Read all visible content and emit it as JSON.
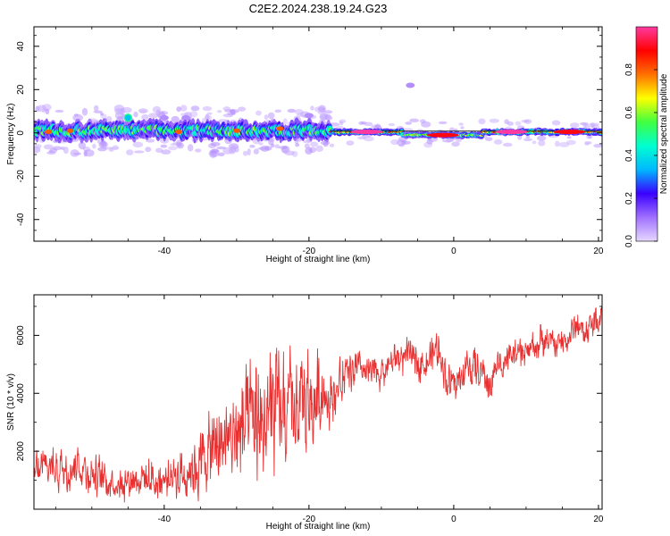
{
  "title": "C2E2.2024.238.19.24.G23",
  "colorbar": {
    "label": "Normalized spectral amplitude",
    "ticks": [
      "0.0",
      "0.2",
      "0.4",
      "0.6",
      "0.8"
    ],
    "tick_values": [
      0.0,
      0.2,
      0.4,
      0.6,
      0.8
    ],
    "range": [
      0,
      1
    ],
    "colors": [
      "#e6d8ff",
      "#a070ff",
      "#3a00ff",
      "#00b8ff",
      "#00ffd0",
      "#40ff40",
      "#ffff00",
      "#ff7000",
      "#ff0000",
      "#ff3aa0"
    ]
  },
  "chart_data": [
    {
      "type": "heatmap",
      "xlabel": "Height of straight line (km)",
      "ylabel": "Frequency (Hz)",
      "xlim": [
        -58,
        20.5
      ],
      "ylim": [
        -50,
        49
      ],
      "xticks": [
        -40,
        -20,
        0,
        20
      ],
      "xtick_labels": [
        "-40",
        "-20",
        "0",
        "20"
      ],
      "yticks": [
        40,
        20,
        0,
        -20,
        -40
      ],
      "ytick_labels": [
        "40",
        "20",
        "0",
        "-20",
        "-40"
      ],
      "ridge": {
        "description_segments": [
          {
            "x_start": -58,
            "x_end": -17,
            "center_hz": 1,
            "spread_hz": 4,
            "peak_amplitude": 0.55
          },
          {
            "x_start": -17,
            "x_end": -7,
            "center_hz": 0.5,
            "spread_hz": 1.5,
            "peak_amplitude": 0.85
          },
          {
            "x_start": -7,
            "x_end": 4,
            "center_hz": -1,
            "spread_hz": 1.5,
            "peak_amplitude": 0.7
          },
          {
            "x_start": 4,
            "x_end": 20.5,
            "center_hz": 0.5,
            "spread_hz": 1.5,
            "peak_amplitude": 0.85
          }
        ],
        "hot_spots": [
          {
            "x": -56,
            "y": 0.5,
            "amp": 0.8
          },
          {
            "x": -53,
            "y": 1,
            "amp": 0.8
          },
          {
            "x": -45,
            "y": 7,
            "amp": 0.5
          },
          {
            "x": -38,
            "y": 0.5,
            "amp": 0.8
          },
          {
            "x": -30,
            "y": 1,
            "amp": 0.8
          },
          {
            "x": -24,
            "y": 2,
            "amp": 0.8
          },
          {
            "x": -12,
            "y": 0.5,
            "amp": 1.0
          },
          {
            "x": -1.5,
            "y": -1,
            "amp": 0.9
          },
          {
            "x": 8,
            "y": 0.5,
            "amp": 1.0
          },
          {
            "x": 16,
            "y": 0.5,
            "amp": 0.9
          }
        ],
        "faint_features": [
          {
            "x": -6,
            "y": 22
          },
          {
            "x": -40,
            "y": 7
          },
          {
            "x": -37,
            "y": 7
          },
          {
            "x": -20,
            "y": 8
          }
        ]
      }
    },
    {
      "type": "line",
      "xlabel": "Height of straight line (km)",
      "ylabel": "SNR (10 * v/v)",
      "xlim": [
        -58,
        20.5
      ],
      "ylim": [
        0,
        7400
      ],
      "xticks": [
        -40,
        -20,
        0,
        20
      ],
      "xtick_labels": [
        "-40",
        "-20",
        "0",
        "20"
      ],
      "yticks": [
        2000,
        4000,
        6000
      ],
      "ytick_labels": [
        "2000",
        "4000",
        "6000"
      ],
      "color": "#e83030",
      "series": [
        {
          "x": [
            -58,
            -56,
            -54,
            -52,
            -50,
            -48,
            -46,
            -44,
            -42,
            -40,
            -38,
            -36,
            -34,
            -32,
            -30,
            -28,
            -26,
            -25,
            -24,
            -22,
            -21,
            -20,
            -18,
            -17,
            -16,
            -14,
            -12,
            -10,
            -8,
            -6,
            -4,
            -2,
            -1,
            0,
            1,
            2,
            4,
            5,
            6,
            8,
            10,
            12,
            14,
            16,
            17,
            18,
            20,
            20.5
          ],
          "y": [
            1300,
            1500,
            1400,
            1600,
            1200,
            1000,
            900,
            1100,
            1000,
            1000,
            1200,
            1400,
            1900,
            2300,
            2600,
            2900,
            3000,
            3300,
            3200,
            3400,
            3600,
            3500,
            4100,
            3900,
            4200,
            4800,
            4700,
            4700,
            5200,
            5300,
            5000,
            5600,
            4500,
            4300,
            4500,
            5000,
            4700,
            4200,
            5000,
            5300,
            5400,
            5800,
            5700,
            5900,
            6400,
            6100,
            6600,
            6700
          ],
          "noise": [
            900,
            900,
            900,
            900,
            900,
            700,
            700,
            700,
            900,
            900,
            1000,
            1200,
            1600,
            1900,
            2200,
            2400,
            3000,
            2800,
            2600,
            2400,
            2800,
            2400,
            1500,
            1200,
            1100,
            900,
            800,
            700,
            700,
            700,
            700,
            800,
            800,
            900,
            800,
            800,
            800,
            800,
            800,
            700,
            700,
            700,
            700,
            700,
            800,
            700,
            600,
            600
          ]
        }
      ]
    }
  ]
}
